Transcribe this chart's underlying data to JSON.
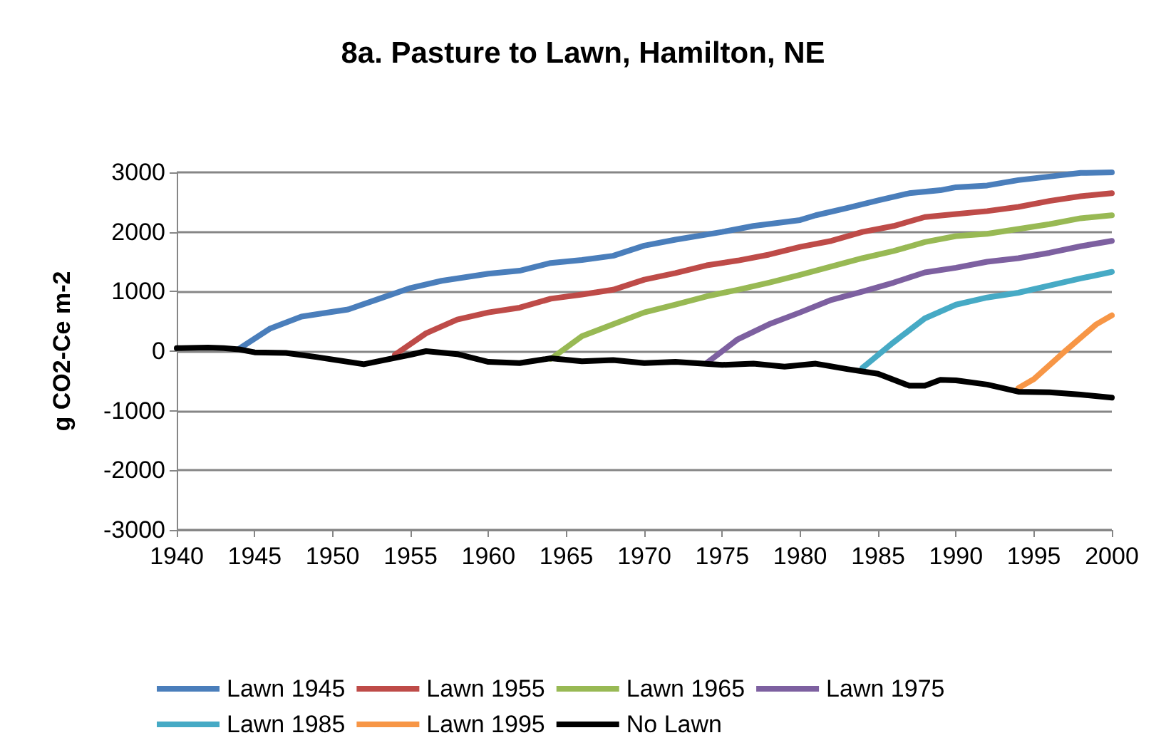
{
  "chart_data": {
    "type": "line",
    "title": "8a. Pasture to Lawn, Hamilton, NE",
    "ylabel": "g CO2-Ce m-2",
    "xlim": [
      1940,
      2000
    ],
    "xticks": [
      1940,
      1945,
      1950,
      1955,
      1960,
      1965,
      1970,
      1975,
      1980,
      1985,
      1990,
      1995,
      2000
    ],
    "ylim": [
      -3000,
      3000
    ],
    "yticks": [
      -3000,
      -2000,
      -1000,
      0,
      1000,
      2000,
      3000
    ],
    "grid": "y",
    "legend": "bottom",
    "marker": "none",
    "line_style": "solid",
    "series": [
      {
        "name": "Lawn 1945",
        "color": "#4a7ebb",
        "x": [
          1944,
          1946,
          1948,
          1950,
          1951,
          1953,
          1955,
          1957,
          1960,
          1962,
          1964,
          1966,
          1968,
          1970,
          1972,
          1975,
          1977,
          1980,
          1981,
          1983,
          1985,
          1987,
          1989,
          1990,
          1992,
          1994,
          1996,
          1998,
          2000
        ],
        "values": [
          40,
          380,
          580,
          660,
          700,
          880,
          1060,
          1180,
          1300,
          1350,
          1480,
          1530,
          1600,
          1770,
          1870,
          2000,
          2100,
          2200,
          2280,
          2400,
          2530,
          2650,
          2700,
          2750,
          2780,
          2870,
          2930,
          2990,
          3000
        ]
      },
      {
        "name": "Lawn 1955",
        "color": "#be4b48",
        "x": [
          1954,
          1956,
          1958,
          1960,
          1962,
          1964,
          1966,
          1968,
          1970,
          1972,
          1974,
          1976,
          1978,
          1980,
          1982,
          1984,
          1986,
          1988,
          1990,
          1992,
          1994,
          1996,
          1998,
          2000
        ],
        "values": [
          -60,
          300,
          530,
          650,
          730,
          880,
          950,
          1030,
          1200,
          1310,
          1440,
          1520,
          1620,
          1750,
          1850,
          2000,
          2100,
          2250,
          2300,
          2350,
          2420,
          2520,
          2600,
          2650
        ]
      },
      {
        "name": "Lawn 1965",
        "color": "#98b954",
        "x": [
          1964,
          1966,
          1968,
          1970,
          1972,
          1974,
          1976,
          1978,
          1980,
          1982,
          1984,
          1986,
          1988,
          1990,
          1992,
          1994,
          1996,
          1998,
          2000
        ],
        "values": [
          -130,
          250,
          450,
          650,
          780,
          920,
          1030,
          1150,
          1280,
          1420,
          1560,
          1680,
          1830,
          1930,
          1970,
          2050,
          2130,
          2230,
          2280
        ]
      },
      {
        "name": "Lawn 1975",
        "color": "#7d60a0",
        "x": [
          1974,
          1976,
          1978,
          1980,
          1982,
          1984,
          1986,
          1988,
          1990,
          1992,
          1994,
          1996,
          1998,
          2000
        ],
        "values": [
          -200,
          200,
          450,
          650,
          860,
          1000,
          1150,
          1320,
          1400,
          1500,
          1560,
          1650,
          1760,
          1850
        ]
      },
      {
        "name": "Lawn 1985",
        "color": "#46aac5",
        "x": [
          1984,
          1986,
          1988,
          1990,
          1992,
          1994,
          1996,
          1998,
          2000
        ],
        "values": [
          -280,
          150,
          550,
          780,
          900,
          980,
          1100,
          1220,
          1330
        ]
      },
      {
        "name": "Lawn 1995",
        "color": "#f79646",
        "x": [
          1994,
          1995,
          1997,
          1999,
          2000
        ],
        "values": [
          -620,
          -470,
          0,
          450,
          600
        ]
      },
      {
        "name": "No Lawn",
        "color": "#000000",
        "x": [
          1940,
          1942,
          1943,
          1944,
          1945,
          1947,
          1949,
          1952,
          1955,
          1956,
          1958,
          1960,
          1962,
          1964,
          1966,
          1968,
          1970,
          1972,
          1975,
          1977,
          1979,
          1981,
          1983,
          1985,
          1987,
          1988,
          1989,
          1990,
          1992,
          1994,
          1996,
          1998,
          2000
        ],
        "values": [
          50,
          60,
          50,
          30,
          -20,
          -30,
          -100,
          -220,
          -60,
          0,
          -50,
          -180,
          -200,
          -120,
          -170,
          -150,
          -200,
          -180,
          -230,
          -210,
          -260,
          -210,
          -300,
          -380,
          -580,
          -580,
          -480,
          -490,
          -560,
          -680,
          -690,
          -730,
          -780
        ]
      }
    ]
  }
}
